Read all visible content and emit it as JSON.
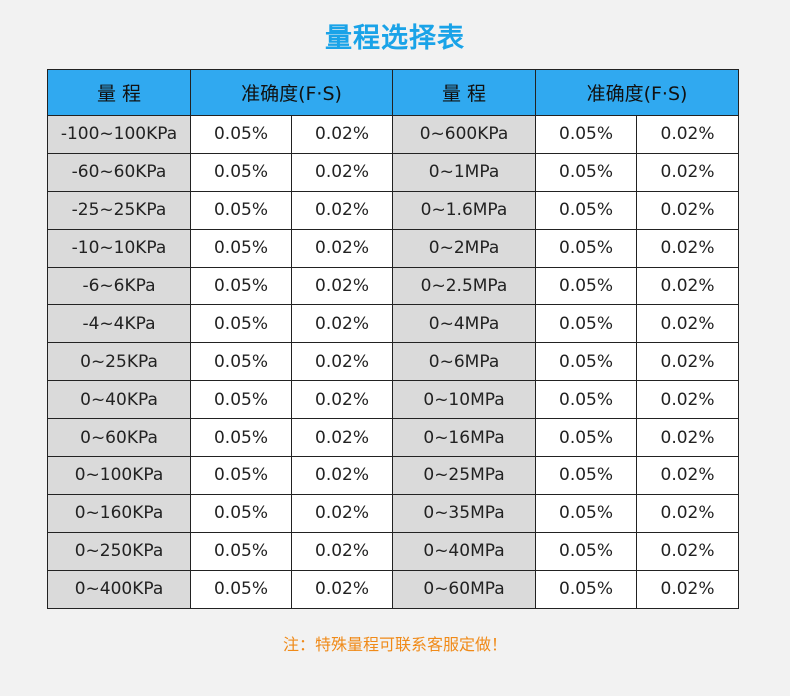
{
  "title": "量程选择表",
  "table": {
    "headers": [
      "量 程",
      "准确度(F·S)",
      "量 程",
      "准确度(F·S)"
    ],
    "rows": [
      [
        "-100~100KPa",
        "0.05%",
        "0.02%",
        "0~600KPa",
        "0.05%",
        "0.02%"
      ],
      [
        "-60~60KPa",
        "0.05%",
        "0.02%",
        "0~1MPa",
        "0.05%",
        "0.02%"
      ],
      [
        "-25~25KPa",
        "0.05%",
        "0.02%",
        "0~1.6MPa",
        "0.05%",
        "0.02%"
      ],
      [
        "-10~10KPa",
        "0.05%",
        "0.02%",
        "0~2MPa",
        "0.05%",
        "0.02%"
      ],
      [
        "-6~6KPa",
        "0.05%",
        "0.02%",
        "0~2.5MPa",
        "0.05%",
        "0.02%"
      ],
      [
        "-4~4KPa",
        "0.05%",
        "0.02%",
        "0~4MPa",
        "0.05%",
        "0.02%"
      ],
      [
        "0~25KPa",
        "0.05%",
        "0.02%",
        "0~6MPa",
        "0.05%",
        "0.02%"
      ],
      [
        "0~40KPa",
        "0.05%",
        "0.02%",
        "0~10MPa",
        "0.05%",
        "0.02%"
      ],
      [
        "0~60KPa",
        "0.05%",
        "0.02%",
        "0~16MPa",
        "0.05%",
        "0.02%"
      ],
      [
        "0~100KPa",
        "0.05%",
        "0.02%",
        "0~25MPa",
        "0.05%",
        "0.02%"
      ],
      [
        "0~160KPa",
        "0.05%",
        "0.02%",
        "0~35MPa",
        "0.05%",
        "0.02%"
      ],
      [
        "0~250KPa",
        "0.05%",
        "0.02%",
        "0~40MPa",
        "0.05%",
        "0.02%"
      ],
      [
        "0~400KPa",
        "0.05%",
        "0.02%",
        "0~60MPa",
        "0.05%",
        "0.02%"
      ]
    ]
  },
  "note": "注：特殊量程可联系客服定做！",
  "colors": {
    "title": "#1aa3e8",
    "header_bg": "#30a9f0",
    "range_cell_bg": "#dadada",
    "note": "#f08a18"
  }
}
